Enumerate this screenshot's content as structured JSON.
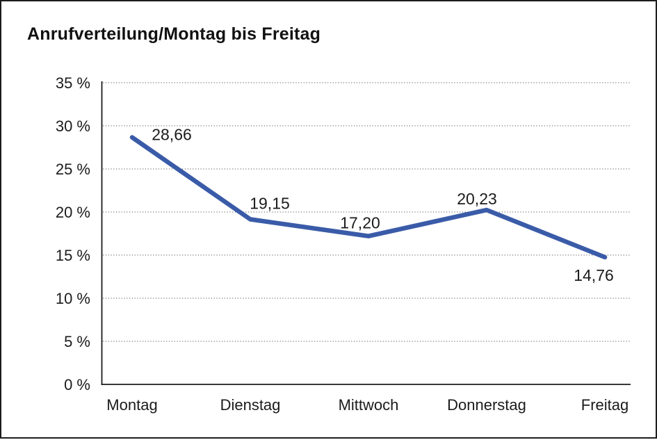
{
  "page": {
    "background": "#ffffff",
    "frame_border_color": "#1d1d1d"
  },
  "chart_data": {
    "type": "line",
    "title": "Anrufverteilung/Montag bis Freitag",
    "categories": [
      "Montag",
      "Dienstag",
      "Mittwoch",
      "Donnerstag",
      "Freitag"
    ],
    "series": [
      {
        "values": [
          28.66,
          19.15,
          17.2,
          20.23,
          14.76
        ],
        "point_labels": [
          "28,66",
          "19,15",
          "17,20",
          "20,23",
          "14,76"
        ],
        "color": "#3a5ba8"
      }
    ],
    "xlabel": "",
    "ylabel": "",
    "ylim": [
      0,
      35
    ],
    "ytick_values": [
      0,
      5,
      10,
      15,
      20,
      25,
      30,
      35
    ],
    "ytick_labels": [
      "0 %",
      "5 %",
      "10 %",
      "15 %",
      "20 %",
      "25 %",
      "30 %",
      "35 %"
    ],
    "grid": "horizontal-dotted",
    "legend": "none"
  },
  "colors": {
    "line": "#3a5ba8",
    "text": "#1b1b1b",
    "grid": "#555555",
    "axis": "#1b1b1b"
  }
}
